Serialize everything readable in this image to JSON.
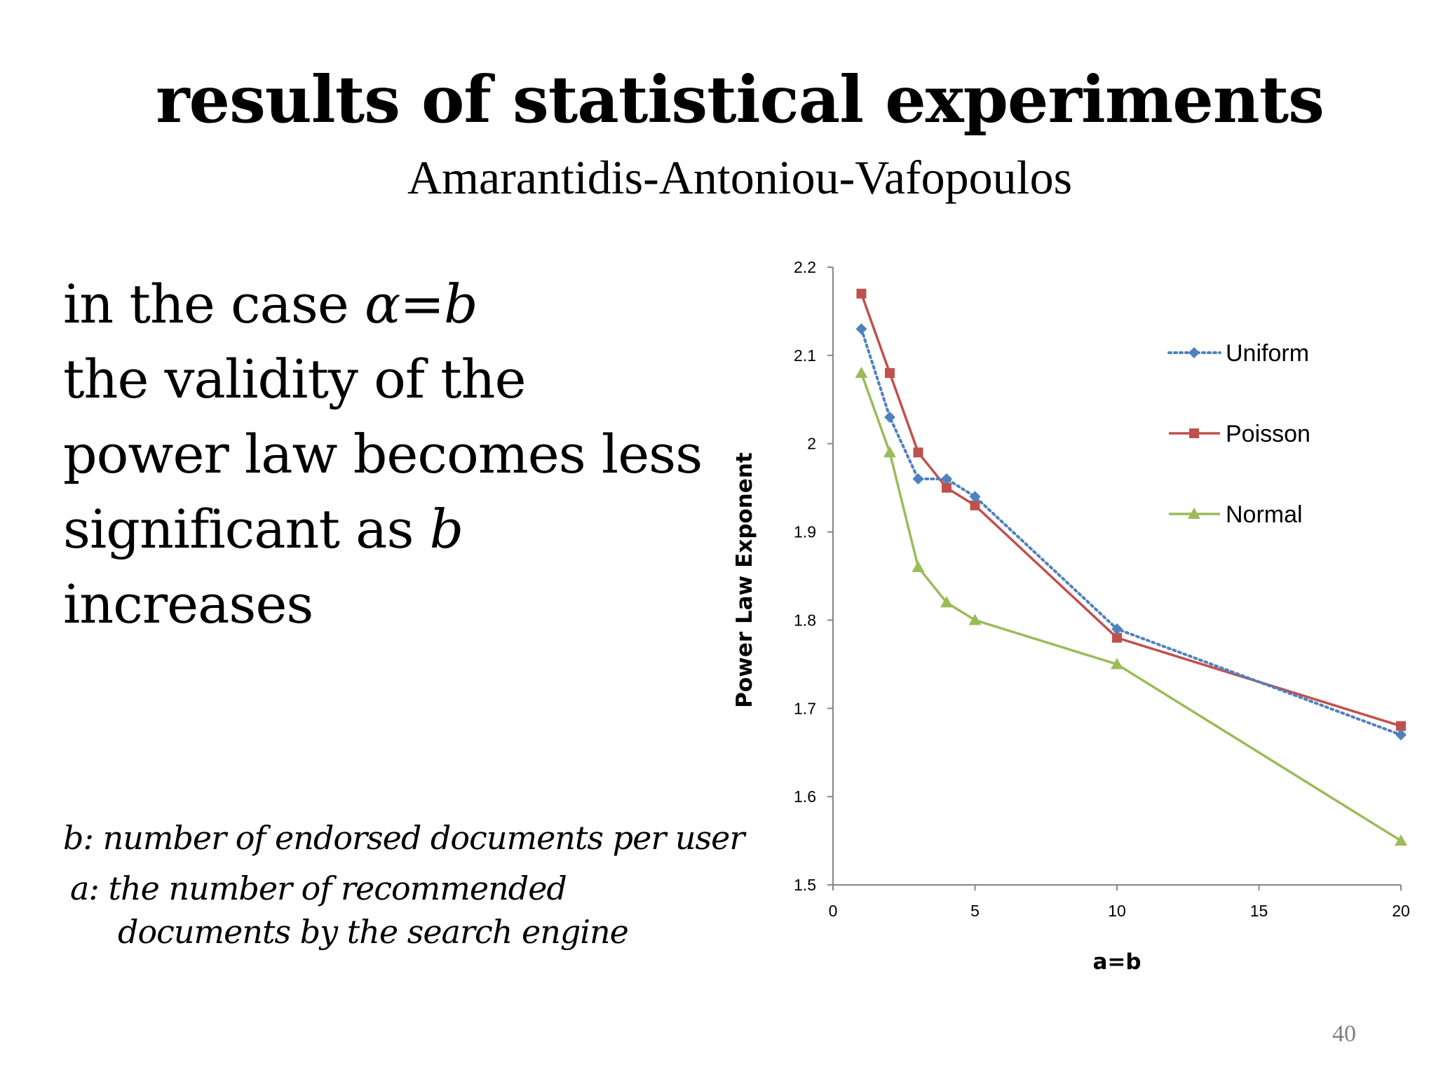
{
  "slide": {
    "title": "results of statistical experiments",
    "subtitle": "Amarantidis-Antoniou-Vafopoulos",
    "body_lines": [
      {
        "text": "in the case ",
        "italic": "α=b"
      },
      {
        "text": "the validity of the",
        "italic": ""
      },
      {
        "text": "power law becomes less",
        "italic": ""
      },
      {
        "text": "significant as ",
        "italic": "b"
      },
      {
        "text": "increases",
        "italic": ""
      }
    ],
    "note_b": "b: number of endorsed documents per user",
    "note_a_line1": "a: the number of recommended",
    "note_a_line2": "documents by the search engine",
    "page_number": "40"
  },
  "chart_data": {
    "type": "line",
    "title": "",
    "xlabel": "a=b",
    "ylabel": "Power Law Exponent",
    "xlim": [
      0,
      20
    ],
    "ylim": [
      1.5,
      2.2
    ],
    "xticks": [
      0,
      5,
      10,
      15,
      20
    ],
    "yticks": [
      1.5,
      1.6,
      1.7,
      1.8,
      1.9,
      2,
      2.1,
      2.2
    ],
    "ytick_labels": [
      "1.5",
      "1.6",
      "1.7",
      "1.8",
      "1.9",
      "2",
      "2.1",
      "2.2"
    ],
    "grid": false,
    "legend_position": "right",
    "series": [
      {
        "name": "Uniform",
        "color": "#4f81bd",
        "marker": "diamond",
        "line_style": "dotted",
        "x": [
          1,
          2,
          3,
          4,
          5,
          10,
          20
        ],
        "y": [
          2.13,
          2.03,
          1.96,
          1.96,
          1.94,
          1.79,
          1.67
        ]
      },
      {
        "name": "Poisson",
        "color": "#c0504d",
        "marker": "square",
        "line_style": "solid",
        "x": [
          1,
          2,
          3,
          4,
          5,
          10,
          20
        ],
        "y": [
          2.17,
          2.08,
          1.99,
          1.95,
          1.93,
          1.78,
          1.68
        ]
      },
      {
        "name": "Normal",
        "color": "#9bbb59",
        "marker": "triangle",
        "line_style": "solid",
        "x": [
          1,
          2,
          3,
          4,
          5,
          10,
          20
        ],
        "y": [
          2.08,
          1.99,
          1.86,
          1.82,
          1.8,
          1.75,
          1.55
        ]
      }
    ]
  }
}
